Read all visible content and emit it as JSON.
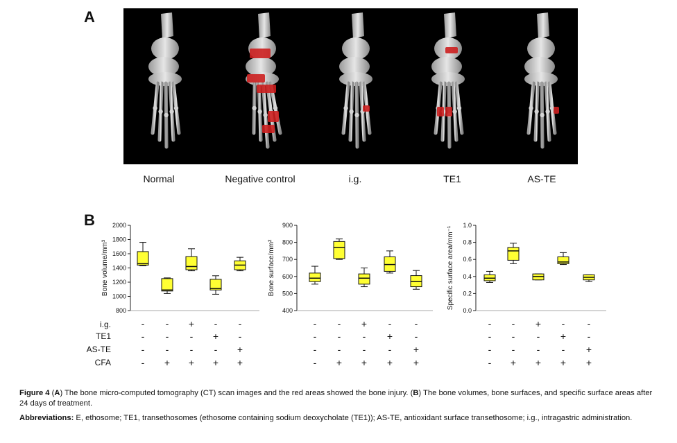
{
  "panel_a": {
    "letter": "A",
    "labels": [
      "Normal",
      "Negative control",
      "i.g.",
      "TE1",
      "AS-TE"
    ]
  },
  "panel_b": {
    "letter": "B",
    "row_labels": [
      "i.g.",
      "TE1",
      "AS-TE",
      "CFA"
    ],
    "treatment_signs": [
      [
        "-",
        "-",
        "+",
        "-",
        "-"
      ],
      [
        "-",
        "-",
        "-",
        "+",
        "-"
      ],
      [
        "-",
        "-",
        "-",
        "-",
        "+"
      ],
      [
        "-",
        "+",
        "+",
        "+",
        "+"
      ]
    ]
  },
  "colors": {
    "box_fill": "#ffff33",
    "lesion": "#cc1f1f",
    "ct_background": "#000000"
  },
  "chart_data": [
    {
      "type": "box",
      "ylabel": "Bone volume/mm³",
      "ylim": [
        800,
        2000
      ],
      "yticks": [
        800,
        1000,
        1200,
        1400,
        1600,
        1800,
        2000
      ],
      "groups": [
        {
          "min": 1430,
          "q1": 1440,
          "median": 1460,
          "q3": 1630,
          "max": 1760
        },
        {
          "min": 1040,
          "q1": 1075,
          "median": 1090,
          "q3": 1250,
          "max": 1260
        },
        {
          "min": 1360,
          "q1": 1375,
          "median": 1420,
          "q3": 1560,
          "max": 1670
        },
        {
          "min": 1030,
          "q1": 1090,
          "median": 1110,
          "q3": 1240,
          "max": 1290
        },
        {
          "min": 1360,
          "q1": 1375,
          "median": 1440,
          "q3": 1500,
          "max": 1550
        }
      ]
    },
    {
      "type": "box",
      "ylabel": "Bone surface/mm²",
      "ylim": [
        400,
        900
      ],
      "yticks": [
        400,
        500,
        600,
        700,
        800,
        900
      ],
      "groups": [
        {
          "min": 555,
          "q1": 570,
          "median": 590,
          "q3": 620,
          "max": 660
        },
        {
          "min": 700,
          "q1": 705,
          "median": 770,
          "q3": 805,
          "max": 820
        },
        {
          "min": 540,
          "q1": 555,
          "median": 590,
          "q3": 615,
          "max": 650
        },
        {
          "min": 620,
          "q1": 630,
          "median": 670,
          "q3": 715,
          "max": 750
        },
        {
          "min": 525,
          "q1": 540,
          "median": 570,
          "q3": 605,
          "max": 635
        }
      ]
    },
    {
      "type": "box",
      "ylabel": "Specific surface area/mm⁻¹",
      "ylim": [
        0.0,
        1.0
      ],
      "yticks": [
        0.0,
        0.2,
        0.4,
        0.6,
        0.8,
        1.0
      ],
      "groups": [
        {
          "min": 0.33,
          "q1": 0.35,
          "median": 0.38,
          "q3": 0.42,
          "max": 0.46
        },
        {
          "min": 0.55,
          "q1": 0.59,
          "median": 0.7,
          "q3": 0.74,
          "max": 0.79
        },
        {
          "min": 0.36,
          "q1": 0.36,
          "median": 0.4,
          "q3": 0.43,
          "max": 0.43
        },
        {
          "min": 0.54,
          "q1": 0.55,
          "median": 0.57,
          "q3": 0.63,
          "max": 0.68
        },
        {
          "min": 0.34,
          "q1": 0.36,
          "median": 0.39,
          "q3": 0.42,
          "max": 0.42
        }
      ]
    }
  ],
  "caption": {
    "title_bold": "Figure 4",
    "part1": " (",
    "a_bold": "A",
    "part2": ") The bone micro-computed tomography (CT) scan images and the red areas showed the bone injury. (",
    "b_bold": "B",
    "part3": ") The bone volumes, bone surfaces, and specific surface areas after 24 days of treatment.",
    "abbrev_bold": "Abbreviations:",
    "abbrev_text": " E, ethosome; TE1, transethosomes (ethosome containing sodium deoxycholate (TE1)); AS-TE, antioxidant surface transethosome; i.g., intragastric administration."
  }
}
